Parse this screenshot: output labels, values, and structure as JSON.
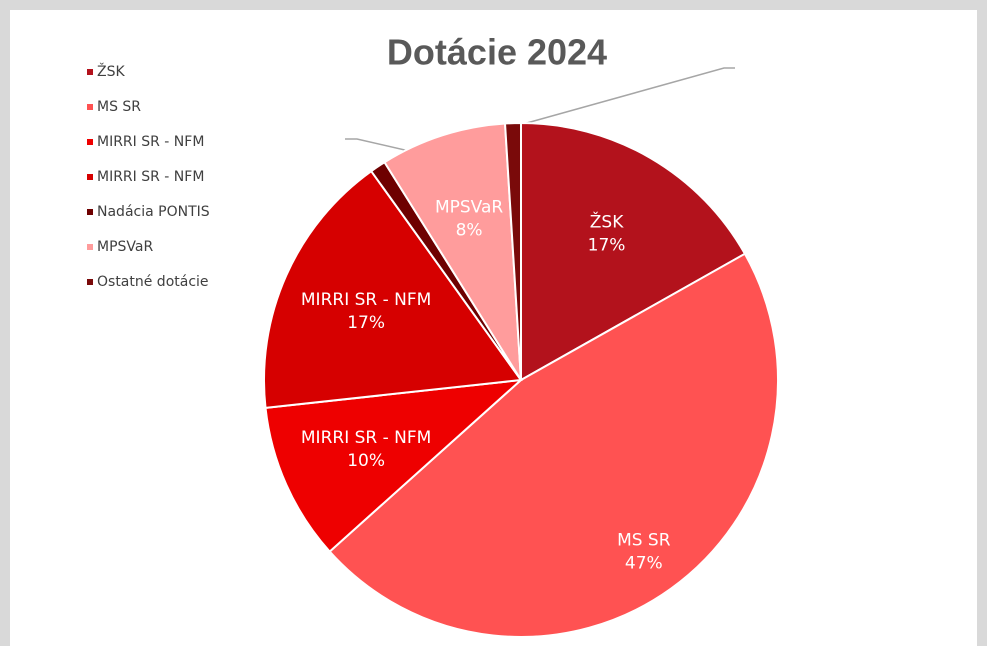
{
  "chart_data": {
    "type": "pie",
    "title": "Dotácie 2024",
    "categories": [
      "ŽSK",
      "MS SR",
      "MIRRI SR - NFM",
      "MIRRI SR - NFM",
      "Nadácia PONTIS",
      "MPSVaR",
      "Ostatné dotácie"
    ],
    "values": [
      17,
      47,
      10,
      17,
      1,
      8,
      1
    ],
    "value_labels": [
      "17%",
      "47%",
      "10%",
      "17%",
      null,
      "8%",
      null
    ],
    "colors": [
      "#b3121c",
      "#ff5252",
      "#ee0000",
      "#d60000",
      "#6e0000",
      "#ff9c9c",
      "#7a0a0a"
    ],
    "legend": "top-left"
  }
}
